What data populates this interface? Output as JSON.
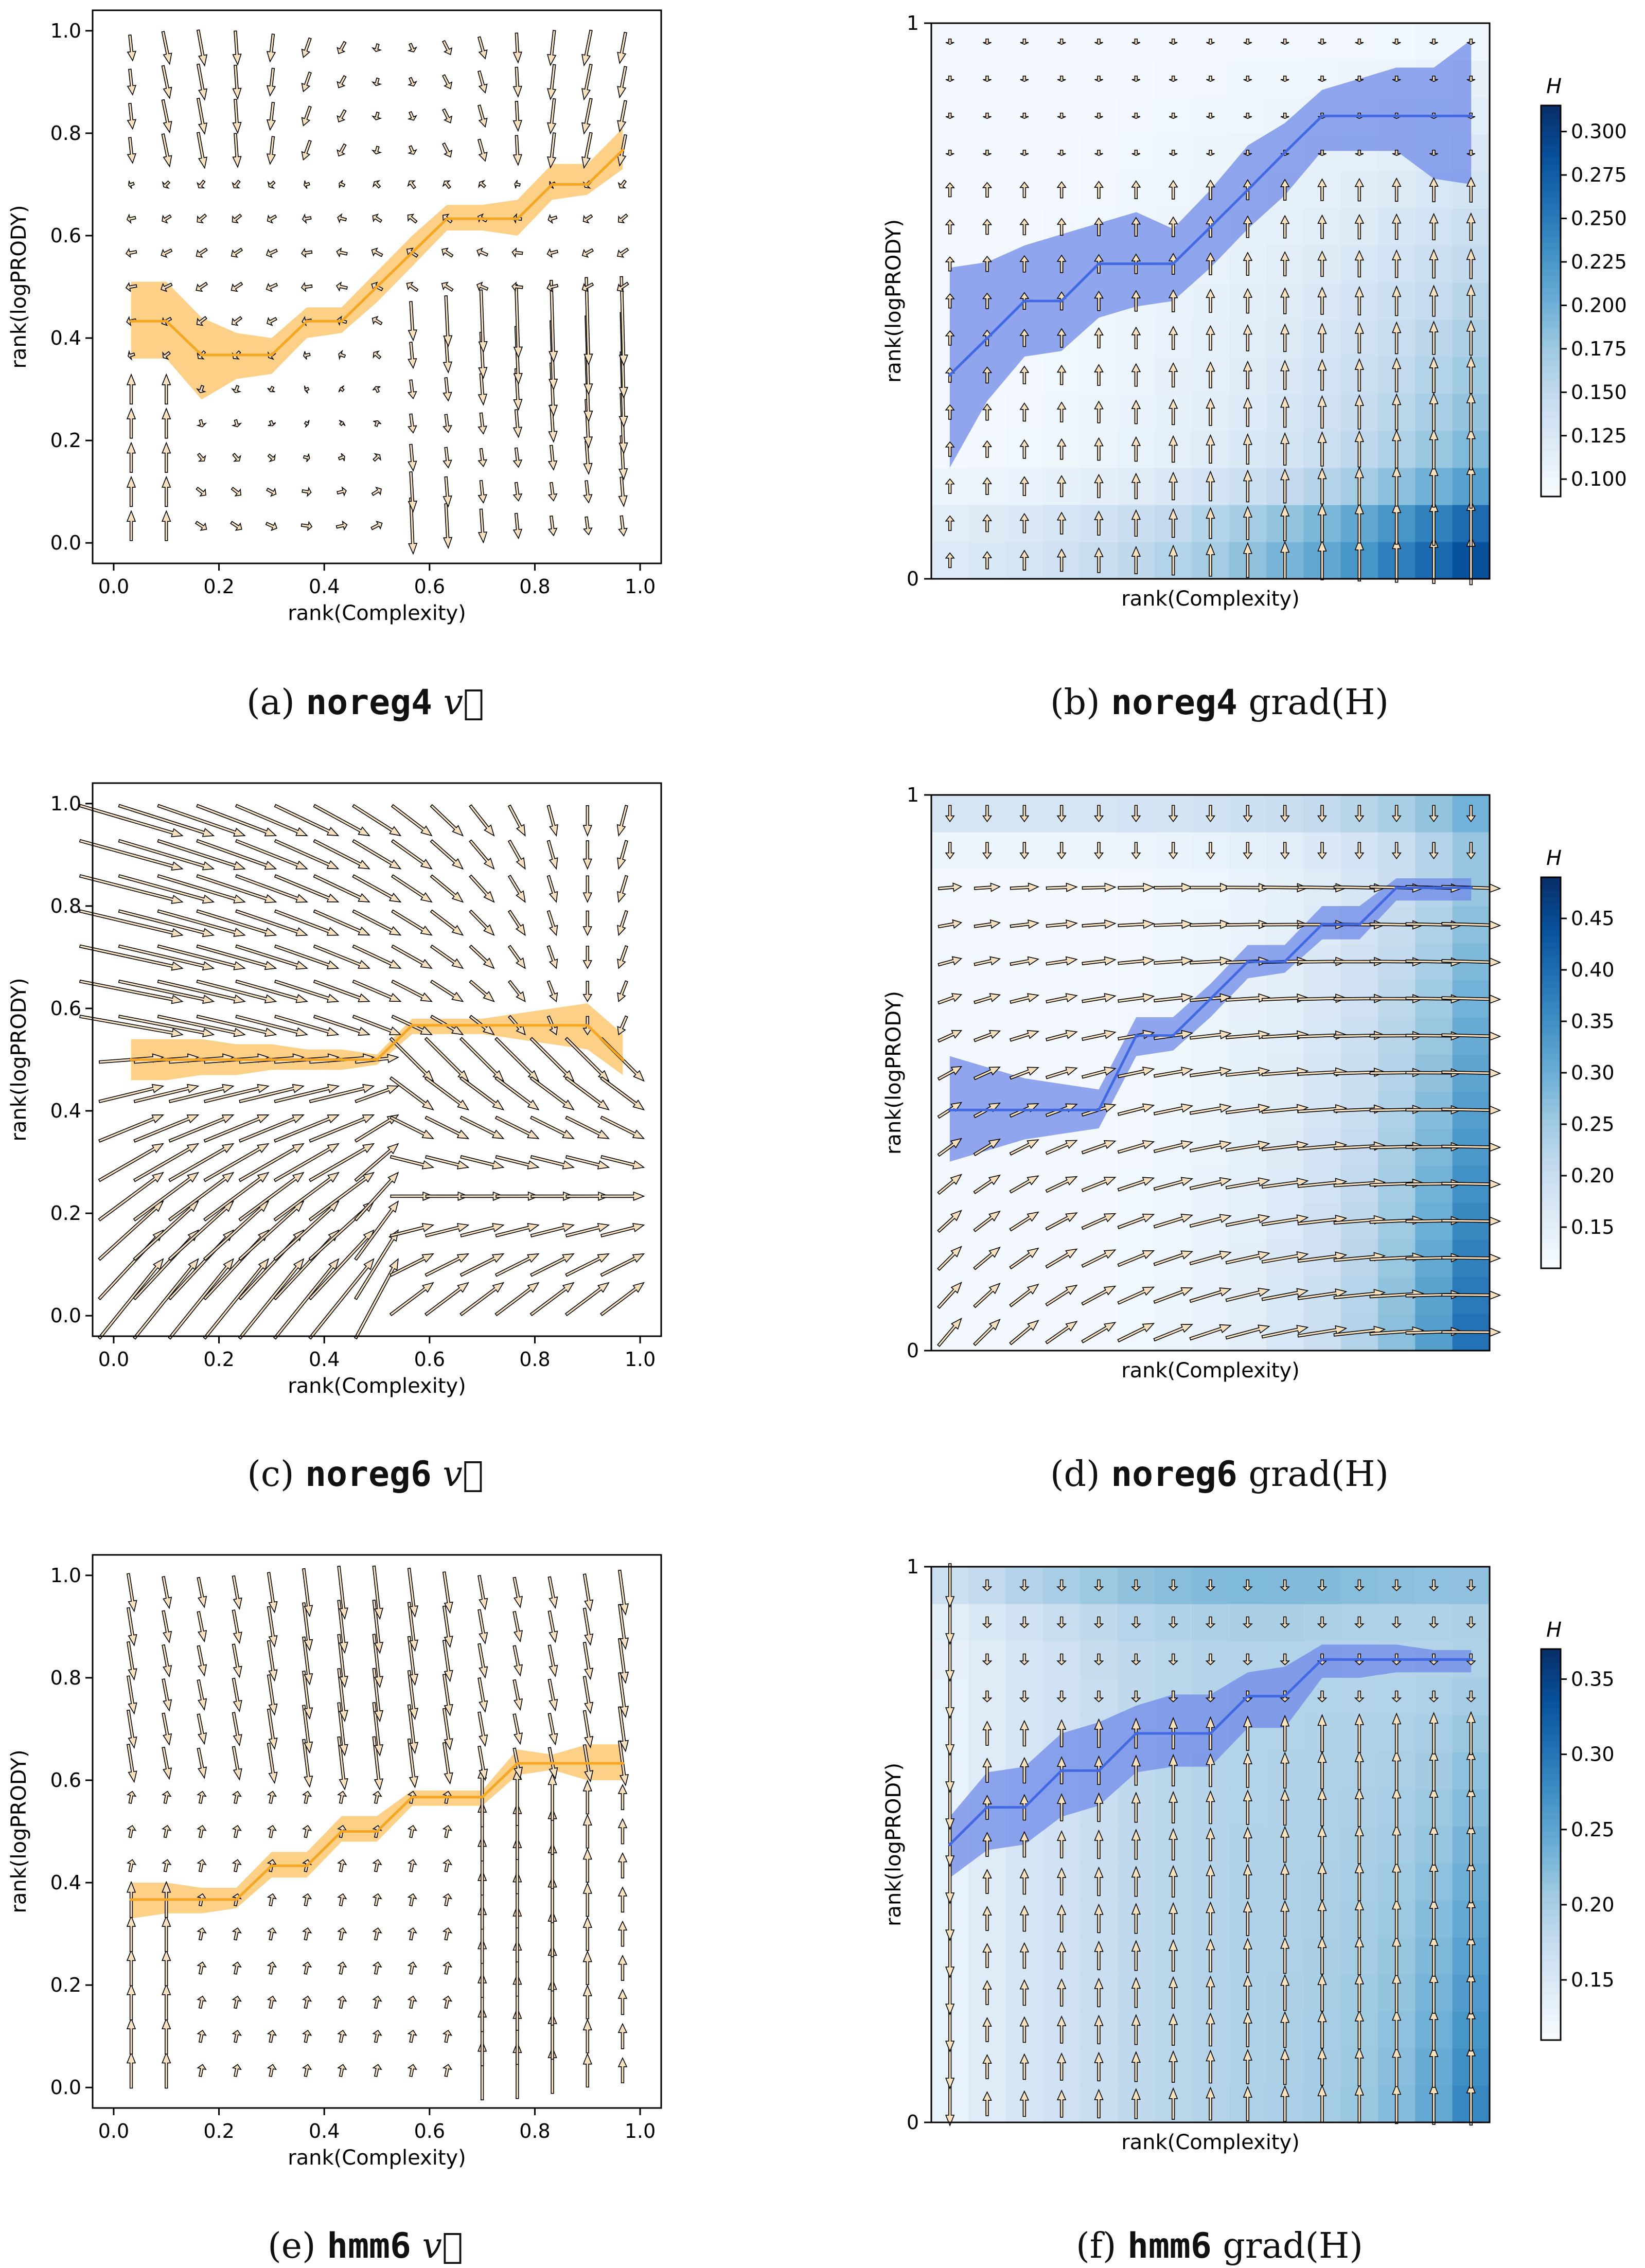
{
  "colors": {
    "orange": "#f5a623",
    "orange_band": "#fccb79",
    "blue_line": "#4169e1",
    "blue_band": "#6f8ae8",
    "arrow_fill": "#f7e0bd",
    "arrow_edge": "#000000"
  },
  "chart_data": [
    {
      "id": "a",
      "type": "quiver+line",
      "caption_prefix": "(a)",
      "caption_model": "noreg4",
      "caption_symbol": "v⃗",
      "xlabel": "rank(Complexity)",
      "ylabel": "rank(logPRODY)",
      "xlim": [
        0,
        1
      ],
      "ylim": [
        0,
        1
      ],
      "xticks": [
        "0.0",
        "0.2",
        "0.4",
        "0.6",
        "0.8",
        "1.0"
      ],
      "yticks": [
        "0.0",
        "0.2",
        "0.4",
        "0.6",
        "0.8",
        "1.0"
      ],
      "line": {
        "x": [
          0.033,
          0.1,
          0.167,
          0.233,
          0.3,
          0.367,
          0.433,
          0.5,
          0.567,
          0.633,
          0.7,
          0.767,
          0.833,
          0.9,
          0.967
        ],
        "y": [
          0.433,
          0.433,
          0.367,
          0.367,
          0.367,
          0.433,
          0.433,
          0.5,
          0.567,
          0.633,
          0.633,
          0.633,
          0.7,
          0.7,
          0.767
        ],
        "lo": [
          0.36,
          0.36,
          0.28,
          0.32,
          0.33,
          0.4,
          0.41,
          0.47,
          0.54,
          0.61,
          0.61,
          0.6,
          0.67,
          0.68,
          0.73
        ],
        "hi": [
          0.51,
          0.51,
          0.44,
          0.41,
          0.4,
          0.46,
          0.46,
          0.53,
          0.6,
          0.66,
          0.66,
          0.67,
          0.74,
          0.74,
          0.81
        ]
      },
      "field": "v_noreg4"
    },
    {
      "id": "b",
      "type": "heatmap+quiver+line",
      "caption_prefix": "(b)",
      "caption_model": "noreg4",
      "caption_symbol": "grad(H)",
      "xlabel": "rank(Complexity)",
      "ylabel": "rank(logPRODY)",
      "ylim": [
        0,
        1
      ],
      "yticks": [
        "0",
        "1"
      ],
      "colorbar": {
        "label": "H",
        "min": 0.09,
        "max": 0.315,
        "ticks": [
          "0.100",
          "0.125",
          "0.150",
          "0.175",
          "0.200",
          "0.225",
          "0.250",
          "0.275",
          "0.300"
        ]
      },
      "line": {
        "x": [
          0.033,
          0.1,
          0.167,
          0.233,
          0.3,
          0.367,
          0.433,
          0.5,
          0.567,
          0.633,
          0.7,
          0.767,
          0.833,
          0.9,
          0.967
        ],
        "y": [
          0.367,
          0.433,
          0.5,
          0.5,
          0.567,
          0.567,
          0.567,
          0.633,
          0.7,
          0.767,
          0.833,
          0.833,
          0.833,
          0.833,
          0.833
        ],
        "lo": [
          0.2,
          0.32,
          0.4,
          0.41,
          0.47,
          0.49,
          0.5,
          0.56,
          0.63,
          0.69,
          0.77,
          0.77,
          0.77,
          0.72,
          0.71
        ],
        "hi": [
          0.56,
          0.57,
          0.6,
          0.62,
          0.64,
          0.66,
          0.63,
          0.7,
          0.78,
          0.82,
          0.88,
          0.9,
          0.92,
          0.92,
          0.97
        ]
      },
      "field": "g_noreg4",
      "heat": "h_noreg4"
    },
    {
      "id": "c",
      "type": "quiver+line",
      "caption_prefix": "(c)",
      "caption_model": "noreg6",
      "caption_symbol": "v⃗",
      "xlabel": "rank(Complexity)",
      "ylabel": "rank(logPRODY)",
      "xlim": [
        0,
        1
      ],
      "ylim": [
        0,
        1
      ],
      "xticks": [
        "0.0",
        "0.2",
        "0.4",
        "0.6",
        "0.8",
        "1.0"
      ],
      "yticks": [
        "0.0",
        "0.2",
        "0.4",
        "0.6",
        "0.8",
        "1.0"
      ],
      "line": {
        "x": [
          0.033,
          0.1,
          0.167,
          0.233,
          0.3,
          0.367,
          0.433,
          0.5,
          0.567,
          0.633,
          0.7,
          0.767,
          0.833,
          0.9,
          0.967
        ],
        "y": [
          0.5,
          0.5,
          0.5,
          0.5,
          0.5,
          0.5,
          0.5,
          0.5,
          0.567,
          0.567,
          0.567,
          0.567,
          0.567,
          0.567,
          0.5
        ],
        "lo": [
          0.46,
          0.46,
          0.47,
          0.47,
          0.48,
          0.48,
          0.48,
          0.49,
          0.55,
          0.55,
          0.55,
          0.54,
          0.53,
          0.52,
          0.47
        ],
        "hi": [
          0.54,
          0.54,
          0.54,
          0.53,
          0.53,
          0.52,
          0.52,
          0.51,
          0.58,
          0.58,
          0.58,
          0.59,
          0.6,
          0.61,
          0.55
        ]
      },
      "field": "v_noreg6"
    },
    {
      "id": "d",
      "type": "heatmap+quiver+line",
      "caption_prefix": "(d)",
      "caption_model": "noreg6",
      "caption_symbol": "grad(H)",
      "xlabel": "rank(Complexity)",
      "ylabel": "rank(logPRODY)",
      "ylim": [
        0,
        1
      ],
      "yticks": [
        "0",
        "1"
      ],
      "colorbar": {
        "label": "H",
        "min": 0.11,
        "max": 0.49,
        "ticks": [
          "0.15",
          "0.20",
          "0.25",
          "0.30",
          "0.35",
          "0.40",
          "0.45"
        ]
      },
      "line": {
        "x": [
          0.033,
          0.1,
          0.167,
          0.233,
          0.3,
          0.367,
          0.433,
          0.5,
          0.567,
          0.633,
          0.7,
          0.767,
          0.833,
          0.9,
          0.967
        ],
        "y": [
          0.433,
          0.433,
          0.433,
          0.433,
          0.433,
          0.567,
          0.567,
          0.633,
          0.7,
          0.7,
          0.767,
          0.767,
          0.833,
          0.833,
          0.833
        ],
        "lo": [
          0.34,
          0.36,
          0.38,
          0.39,
          0.4,
          0.53,
          0.54,
          0.6,
          0.67,
          0.68,
          0.74,
          0.74,
          0.81,
          0.81,
          0.81
        ],
        "hi": [
          0.53,
          0.51,
          0.49,
          0.48,
          0.47,
          0.6,
          0.6,
          0.66,
          0.73,
          0.73,
          0.8,
          0.8,
          0.85,
          0.85,
          0.85
        ]
      },
      "field": "g_noreg6",
      "heat": "h_noreg6"
    },
    {
      "id": "e",
      "type": "quiver+line",
      "caption_prefix": "(e)",
      "caption_model": "hmm6",
      "caption_symbol": "v⃗",
      "xlabel": "rank(Complexity)",
      "ylabel": "rank(logPRODY)",
      "xlim": [
        0,
        1
      ],
      "ylim": [
        0,
        1
      ],
      "xticks": [
        "0.0",
        "0.2",
        "0.4",
        "0.6",
        "0.8",
        "1.0"
      ],
      "yticks": [
        "0.0",
        "0.2",
        "0.4",
        "0.6",
        "0.8",
        "1.0"
      ],
      "line": {
        "x": [
          0.033,
          0.1,
          0.167,
          0.233,
          0.3,
          0.367,
          0.433,
          0.5,
          0.567,
          0.633,
          0.7,
          0.767,
          0.833,
          0.9,
          0.967
        ],
        "y": [
          0.367,
          0.367,
          0.367,
          0.367,
          0.433,
          0.433,
          0.5,
          0.5,
          0.567,
          0.567,
          0.567,
          0.633,
          0.633,
          0.633,
          0.633
        ],
        "lo": [
          0.33,
          0.34,
          0.34,
          0.35,
          0.41,
          0.41,
          0.48,
          0.48,
          0.55,
          0.55,
          0.55,
          0.61,
          0.62,
          0.6,
          0.6
        ],
        "hi": [
          0.4,
          0.4,
          0.39,
          0.39,
          0.46,
          0.46,
          0.53,
          0.53,
          0.58,
          0.58,
          0.58,
          0.66,
          0.65,
          0.67,
          0.67
        ]
      },
      "field": "v_hmm6"
    },
    {
      "id": "f",
      "type": "heatmap+quiver+line",
      "caption_prefix": "(f)",
      "caption_model": "hmm6",
      "caption_symbol": "grad(H)",
      "xlabel": "rank(Complexity)",
      "ylabel": "rank(logPRODY)",
      "ylim": [
        0,
        1
      ],
      "yticks": [
        "0",
        "1"
      ],
      "colorbar": {
        "label": "H",
        "min": 0.11,
        "max": 0.37,
        "ticks": [
          "0.15",
          "0.20",
          "0.25",
          "0.30",
          "0.35"
        ]
      },
      "line": {
        "x": [
          0.033,
          0.1,
          0.167,
          0.233,
          0.3,
          0.367,
          0.433,
          0.5,
          0.567,
          0.633,
          0.7,
          0.767,
          0.833,
          0.9,
          0.967
        ],
        "y": [
          0.5,
          0.567,
          0.567,
          0.633,
          0.633,
          0.7,
          0.7,
          0.7,
          0.767,
          0.767,
          0.833,
          0.833,
          0.833,
          0.833,
          0.833
        ],
        "lo": [
          0.44,
          0.49,
          0.5,
          0.55,
          0.57,
          0.63,
          0.64,
          0.64,
          0.71,
          0.71,
          0.8,
          0.8,
          0.81,
          0.81,
          0.81
        ],
        "hi": [
          0.55,
          0.63,
          0.64,
          0.7,
          0.72,
          0.75,
          0.77,
          0.77,
          0.81,
          0.82,
          0.86,
          0.86,
          0.86,
          0.85,
          0.85
        ]
      },
      "field": "g_hmm6",
      "heat": "h_hmm6"
    }
  ]
}
